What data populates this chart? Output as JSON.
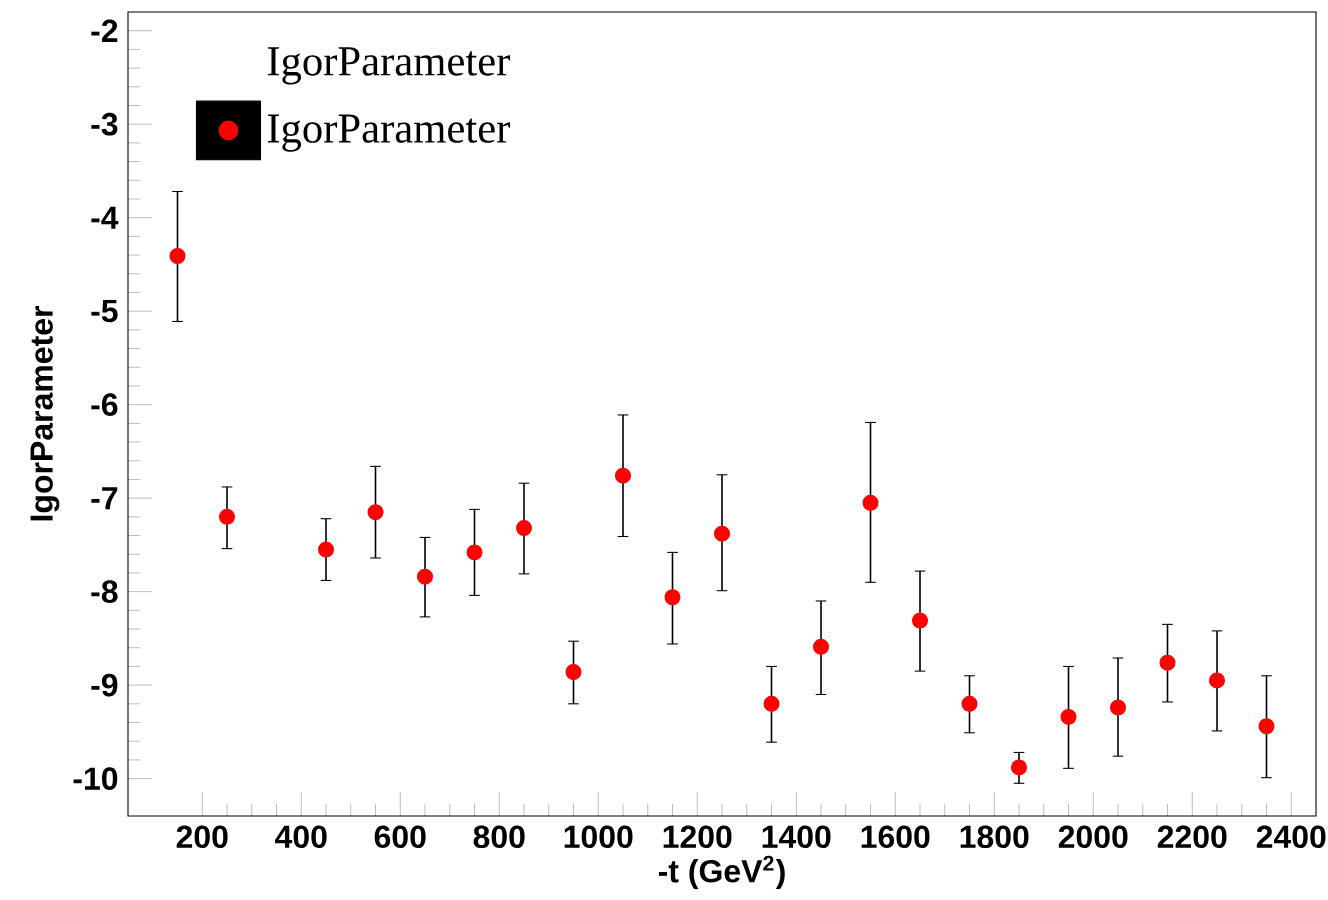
{
  "chart_data": {
    "type": "scatter",
    "xlabel": "-t (GeV$^{2}$)",
    "ylabel": "IgorParameter",
    "legend_title": "IgorParameter",
    "legend": "top left",
    "marker": "circle",
    "xlim": [
      50,
      2450
    ],
    "ylim": [
      -10.4,
      -1.8
    ],
    "xticks": [
      200,
      400,
      600,
      800,
      1000,
      1200,
      1400,
      1600,
      1800,
      2000,
      2200,
      2400
    ],
    "yticks": [
      -10,
      -9,
      -8,
      -7,
      -6,
      -5,
      -4,
      -3,
      -2
    ],
    "series": [
      {
        "name": "IgorParameter",
        "color": "#ff0000",
        "x": [
          150,
          250,
          450,
          550,
          650,
          750,
          850,
          950,
          1050,
          1150,
          1250,
          1350,
          1450,
          1550,
          1650,
          1750,
          1850,
          1950,
          2050,
          2150,
          2250,
          2350
        ],
        "values": [
          -4.41,
          -7.2,
          -7.55,
          -7.15,
          -7.84,
          -7.58,
          -7.32,
          -8.86,
          -6.76,
          -8.06,
          -7.38,
          -9.2,
          -8.59,
          -7.05,
          -8.31,
          -9.2,
          -9.88,
          -9.34,
          -9.24,
          -8.76,
          -8.95,
          -9.44
        ],
        "errors": [
          [
            -5.11,
            -3.72
          ],
          [
            -7.54,
            -6.88
          ],
          [
            -7.88,
            -7.22
          ],
          [
            -7.64,
            -6.66
          ],
          [
            -8.27,
            -7.42
          ],
          [
            -8.04,
            -7.12
          ],
          [
            -7.81,
            -6.84
          ],
          [
            -9.2,
            -8.53
          ],
          [
            -7.41,
            -6.11
          ],
          [
            -8.56,
            -7.58
          ],
          [
            -7.99,
            -6.75
          ],
          [
            -9.61,
            -8.8
          ],
          [
            -9.1,
            -8.1
          ],
          [
            -7.9,
            -6.19
          ],
          [
            -8.85,
            -7.78
          ],
          [
            -9.51,
            -8.9
          ],
          [
            -10.05,
            -9.72
          ],
          [
            -9.89,
            -8.8
          ],
          [
            -9.76,
            -8.71
          ],
          [
            -9.18,
            -8.35
          ],
          [
            -9.49,
            -8.42
          ],
          [
            -9.99,
            -8.9
          ]
        ]
      }
    ]
  }
}
